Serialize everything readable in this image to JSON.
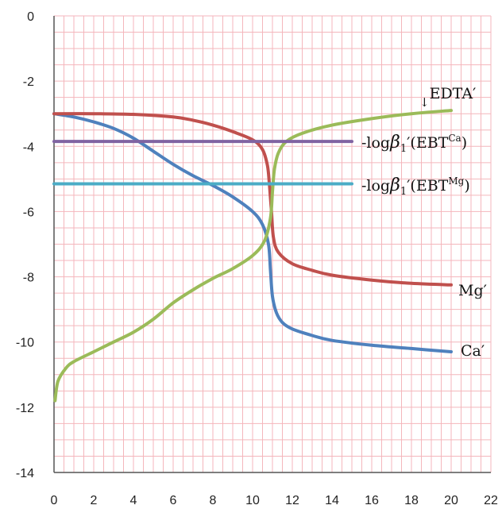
{
  "chart_data": {
    "type": "line",
    "title": "",
    "xlabel": "",
    "ylabel": "",
    "xlim": [
      0,
      22
    ],
    "ylim": [
      -14,
      0
    ],
    "xticks": [
      "0",
      "2",
      "4",
      "6",
      "8",
      "10",
      "12",
      "14",
      "16",
      "18",
      "20",
      "22"
    ],
    "yticks": [
      "0",
      "-2",
      "-4",
      "-6",
      "-8",
      "-10",
      "-12",
      "-14"
    ],
    "grid": true,
    "grid_color": "#f4b6bc",
    "series": [
      {
        "name": "Ca′",
        "color": "#4f81bd",
        "points": [
          [
            0,
            -3.0
          ],
          [
            1,
            -3.1
          ],
          [
            2,
            -3.25
          ],
          [
            3,
            -3.45
          ],
          [
            4,
            -3.75
          ],
          [
            5,
            -4.15
          ],
          [
            6,
            -4.55
          ],
          [
            7,
            -4.9
          ],
          [
            8,
            -5.2
          ],
          [
            9,
            -5.55
          ],
          [
            10,
            -6.0
          ],
          [
            10.5,
            -6.4
          ],
          [
            10.8,
            -7.0
          ],
          [
            10.9,
            -7.8
          ],
          [
            11.0,
            -8.6
          ],
          [
            11.2,
            -9.1
          ],
          [
            11.5,
            -9.4
          ],
          [
            12,
            -9.6
          ],
          [
            13,
            -9.8
          ],
          [
            14,
            -9.95
          ],
          [
            16,
            -10.1
          ],
          [
            18,
            -10.2
          ],
          [
            20,
            -10.3
          ]
        ]
      },
      {
        "name": "Mg′",
        "color": "#c0504d",
        "points": [
          [
            0,
            -3.0
          ],
          [
            2,
            -3.0
          ],
          [
            4,
            -3.02
          ],
          [
            6,
            -3.1
          ],
          [
            7,
            -3.2
          ],
          [
            8,
            -3.35
          ],
          [
            9,
            -3.55
          ],
          [
            10,
            -3.8
          ],
          [
            10.5,
            -4.1
          ],
          [
            10.75,
            -4.6
          ],
          [
            10.85,
            -5.2
          ],
          [
            10.95,
            -6.0
          ],
          [
            11.05,
            -6.8
          ],
          [
            11.3,
            -7.25
          ],
          [
            12,
            -7.6
          ],
          [
            13,
            -7.8
          ],
          [
            14,
            -7.95
          ],
          [
            16,
            -8.1
          ],
          [
            18,
            -8.2
          ],
          [
            20,
            -8.25
          ]
        ]
      },
      {
        "name": "EDTA′",
        "color": "#9bbb59",
        "points": [
          [
            0.05,
            -11.8
          ],
          [
            0.2,
            -11.2
          ],
          [
            0.6,
            -10.8
          ],
          [
            1,
            -10.6
          ],
          [
            2,
            -10.3
          ],
          [
            3,
            -10.0
          ],
          [
            4,
            -9.7
          ],
          [
            5,
            -9.3
          ],
          [
            6,
            -8.8
          ],
          [
            7,
            -8.4
          ],
          [
            8,
            -8.05
          ],
          [
            9,
            -7.75
          ],
          [
            10,
            -7.35
          ],
          [
            10.6,
            -6.9
          ],
          [
            10.9,
            -6.2
          ],
          [
            11.0,
            -5.4
          ],
          [
            11.1,
            -4.7
          ],
          [
            11.3,
            -4.2
          ],
          [
            11.7,
            -3.85
          ],
          [
            12.5,
            -3.6
          ],
          [
            14,
            -3.35
          ],
          [
            16,
            -3.15
          ],
          [
            18,
            -3.0
          ],
          [
            20,
            -2.9
          ]
        ]
      },
      {
        "name": "-logβ₁′(EBT^Ca)",
        "color": "#8064a2",
        "points": [
          [
            0,
            -3.85
          ],
          [
            15,
            -3.85
          ]
        ]
      },
      {
        "name": "-logβ₁′(EBT^Mg)",
        "color": "#4bacc6",
        "points": [
          [
            0,
            -5.15
          ],
          [
            15,
            -5.15
          ]
        ]
      }
    ],
    "labels": {
      "edta_prefix": "EDTA",
      "edta_prime": "′",
      "edta_arrow": "↓",
      "ca": "Ca′",
      "mg": "Mg′",
      "neglog": "-log",
      "beta": "β",
      "sub1": "1",
      "ebt_open": "′(EBT",
      "ca_sup": "Ca",
      "mg_sup": "Mg",
      "close_paren": ")"
    }
  }
}
